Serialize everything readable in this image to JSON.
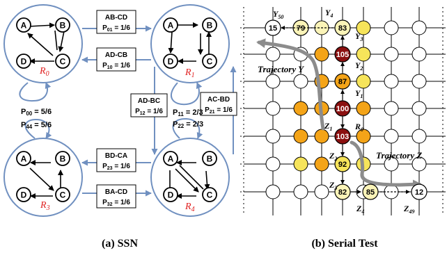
{
  "ssn": {
    "states": [
      {
        "id": "R0",
        "label": "R",
        "sub": "0"
      },
      {
        "id": "R1",
        "label": "R",
        "sub": "1"
      },
      {
        "id": "R3",
        "label": "R",
        "sub": "3"
      },
      {
        "id": "R4",
        "label": "R",
        "sub": "4"
      }
    ],
    "nodes": [
      "A",
      "B",
      "C",
      "D"
    ],
    "transitions": [
      {
        "swap": "AB-CD",
        "prob": "P",
        "sub": "01",
        "val": " = 1/6"
      },
      {
        "swap": "AD-CB",
        "prob": "P",
        "sub": "10",
        "val": " = 1/6"
      },
      {
        "swap": "AD-BC",
        "prob": "P",
        "sub": "12",
        "val": " = 1/6"
      },
      {
        "swap": "AC-BD",
        "prob": "P",
        "sub": "21",
        "val": " = 1/6"
      },
      {
        "swap": "BD-CA",
        "prob": "P",
        "sub": "23",
        "val": " = 1/6"
      },
      {
        "swap": "BA-CD",
        "prob": "P",
        "sub": "32",
        "val": " = 1/6"
      }
    ],
    "self_loops": [
      {
        "prob": "P",
        "sub": "00",
        "val": " = 5/6"
      },
      {
        "prob": "P",
        "sub": "11",
        "val": " = 2/3"
      },
      {
        "prob": "P",
        "sub": "22",
        "val": " = 2/3"
      },
      {
        "prob": "P",
        "sub": "44",
        "val": " = 5/6"
      }
    ],
    "caption": "(a) SSN"
  },
  "serial": {
    "values": {
      "v15": "15",
      "v79": "79",
      "v83": "83",
      "v105": "105",
      "v87": "87",
      "v100": "100",
      "v103": "103",
      "v92": "92",
      "v82": "82",
      "v85": "85",
      "v12": "12"
    },
    "labels": {
      "y50": {
        "t": "Y",
        "s": "50"
      },
      "y4": {
        "t": "Y",
        "s": "4"
      },
      "y3": {
        "t": "Y",
        "s": "3"
      },
      "y2": {
        "t": "Y",
        "s": "2"
      },
      "y1": {
        "t": "Y",
        "s": "1"
      },
      "z1": {
        "t": "Z",
        "s": "1"
      },
      "r0": {
        "t": "R",
        "s": "0"
      },
      "z2": {
        "t": "Z",
        "s": "2"
      },
      "z3": {
        "t": "Z",
        "s": "3"
      },
      "z4": {
        "t": "Z",
        "s": "4"
      },
      "z49": {
        "t": "Z",
        "s": "49"
      }
    },
    "trajectory_y": "Trajectory Y",
    "trajectory_z": "Trajectory Z",
    "caption": "(b) Serial Test"
  },
  "colors": {
    "ring_blue": "#7090c0",
    "dark_red": "#8b1010",
    "orange": "#f4a418",
    "yellow": "#f6e45a",
    "light_yellow": "#fbf4b8",
    "state_red": "#e02020",
    "gray_arrow": "#8c8c8c"
  }
}
